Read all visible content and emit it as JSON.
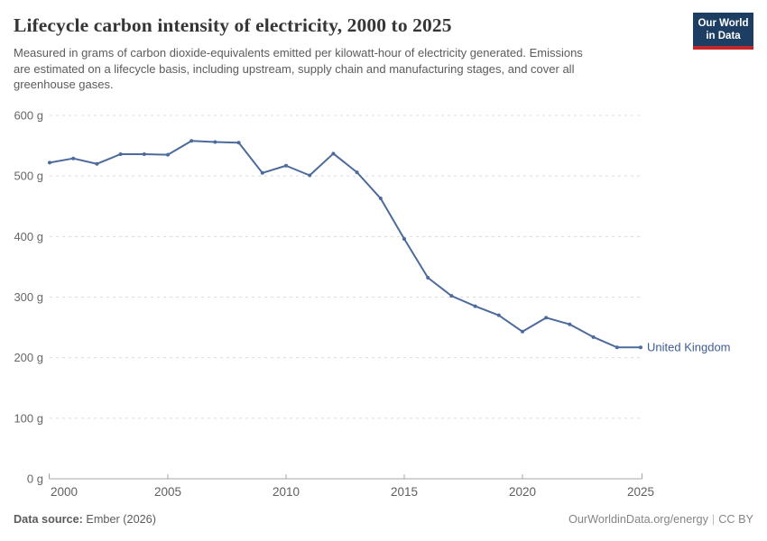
{
  "header": {
    "title": "Lifecycle carbon intensity of electricity, 2000 to 2025",
    "subtitle_lines": [
      "Measured in grams of carbon dioxide-equivalents emitted per kilowatt-hour of electricity generated. Emissions",
      "are estimated on a lifecycle basis, including upstream, supply chain and manufacturing stages, and cover all",
      "greenhouse gases."
    ],
    "logo": {
      "line1": "Our World",
      "line2": "in Data"
    }
  },
  "colors": {
    "accent_blue": "#4c6a9c",
    "entity_label_blue": "#3d5c94",
    "logo_navy": "#1d3d63",
    "logo_red": "#c5262d",
    "grid": "#dcdcdc",
    "axis": "#a5a5a5",
    "tick_text": "#666666"
  },
  "chart_data": {
    "type": "line",
    "title": "Lifecycle carbon intensity of electricity, 2000 to 2025",
    "unit": "grams of carbon dioxide-equivalents per kilowatt-hour",
    "x": [
      2000,
      2001,
      2002,
      2003,
      2004,
      2005,
      2006,
      2007,
      2008,
      2009,
      2010,
      2011,
      2012,
      2013,
      2014,
      2015,
      2016,
      2017,
      2018,
      2019,
      2020,
      2021,
      2022,
      2023,
      2024,
      2025
    ],
    "series": [
      {
        "name": "United Kingdom",
        "values": [
          522,
          529,
          520,
          536,
          536,
          535,
          558,
          556,
          555,
          505,
          517,
          501,
          537,
          506,
          463,
          396,
          332,
          302,
          285,
          270,
          243,
          266,
          255,
          234,
          217,
          217
        ]
      }
    ],
    "ylim": [
      0,
      600
    ],
    "ytick_step": 100,
    "ytick_suffix": " g",
    "xticks": [
      2000,
      2005,
      2010,
      2015,
      2020,
      2025
    ],
    "grid": "horizontal-dashed",
    "legend": "end-of-line-label"
  },
  "footer": {
    "source_label": "Data source:",
    "source_value": "Ember (2026)",
    "credit": "OurWorldinData.org/energy",
    "separator": "|",
    "license": "CC BY"
  }
}
